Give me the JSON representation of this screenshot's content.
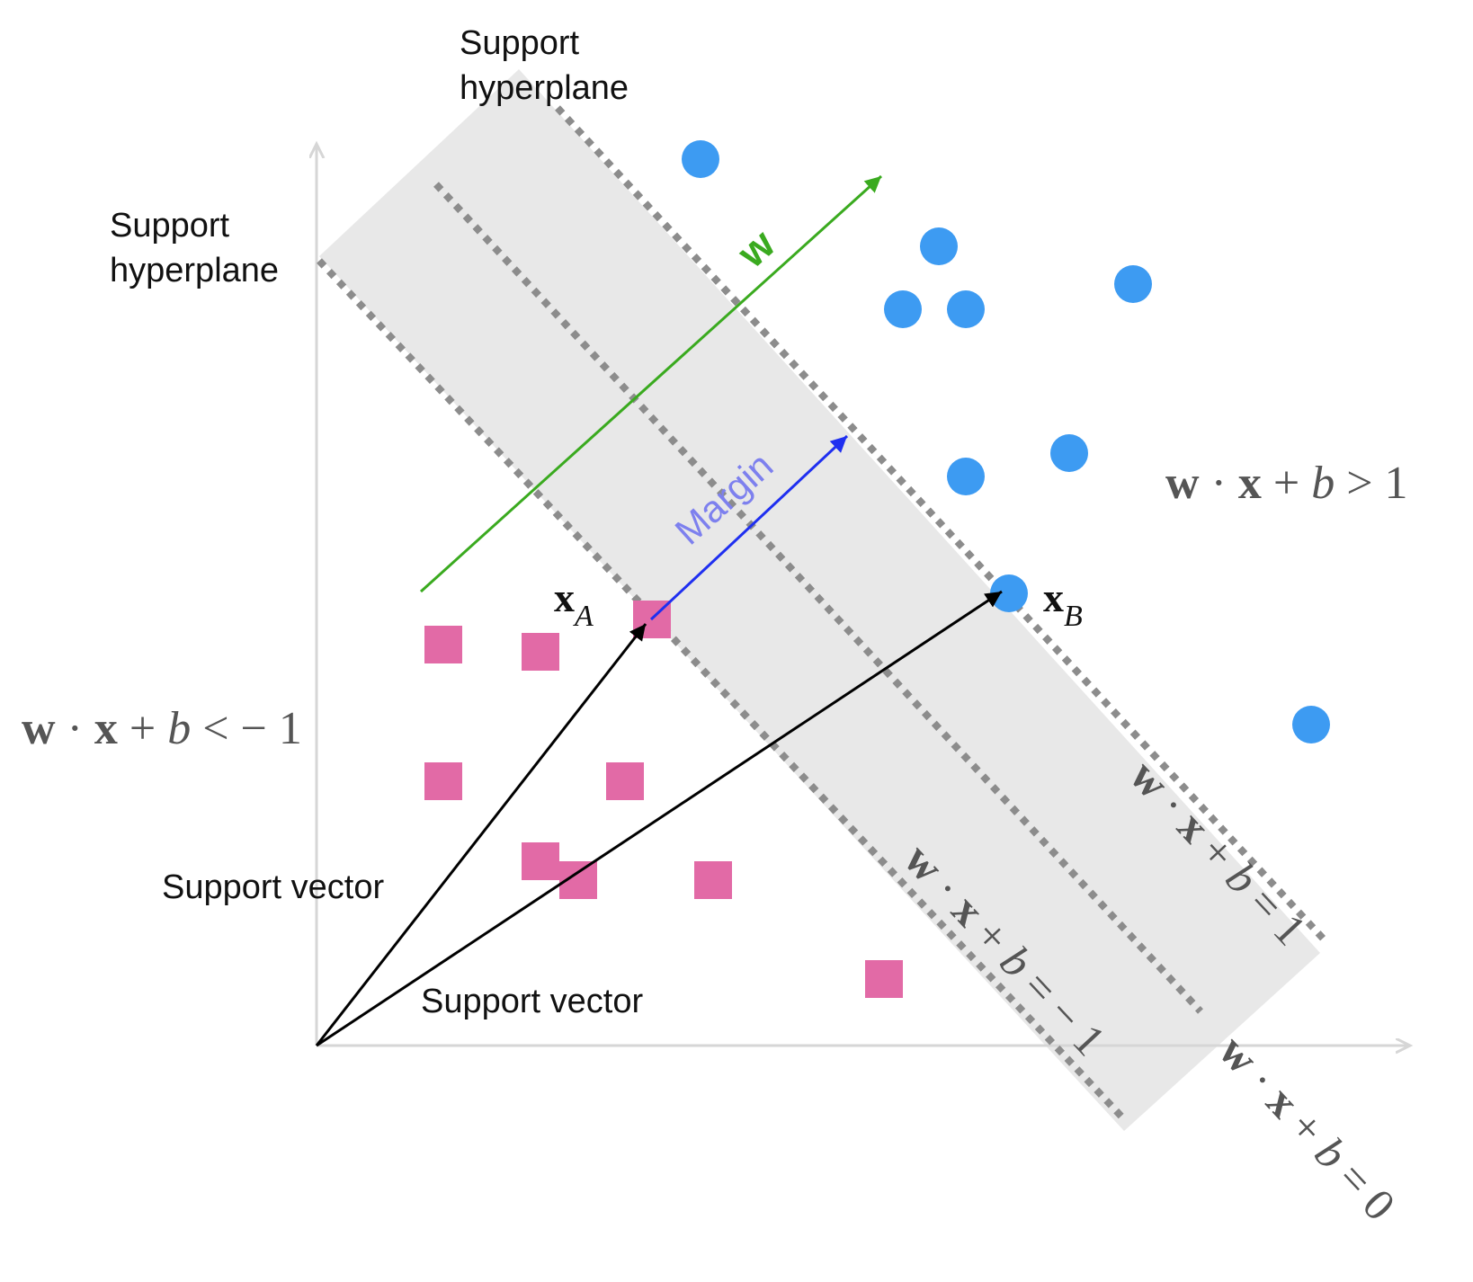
{
  "labels": {
    "support_hyperplane_top": [
      "Support",
      "hyperplane"
    ],
    "support_hyperplane_left": [
      "Support",
      "hyperplane"
    ],
    "w_vector": "w",
    "margin": "Margin",
    "support_vector_a": "Support vector",
    "support_vector_b": "Support vector"
  },
  "equations": {
    "positive_region": {
      "w": "w",
      "dot": "·",
      "x": "x",
      "plus": "+",
      "b": "b",
      "rel": ">",
      "rhs": "1"
    },
    "negative_region": {
      "w": "w",
      "dot": "·",
      "x": "x",
      "plus": "+",
      "b": "b",
      "rel": "<",
      "rhs": "− 1"
    },
    "hyperplane_plus_one": {
      "w": "w",
      "dot": "·",
      "x": "x",
      "plus": "+",
      "b": "b",
      "rel": "=",
      "rhs": "1"
    },
    "hyperplane_minus_one": {
      "w": "w",
      "dot": "·",
      "x": "x",
      "plus": "+",
      "b": "b",
      "rel": "=",
      "rhs": "− 1"
    },
    "hyperplane_zero": {
      "w": "w",
      "dot": "·",
      "x": "x",
      "plus": "+",
      "b": "b",
      "rel": "=",
      "rhs": "0"
    }
  },
  "points": {
    "xA": {
      "base": "x",
      "sub": "A"
    },
    "xB": {
      "base": "x",
      "sub": "B"
    }
  },
  "colors": {
    "axis": "#d6d6d6",
    "band": "#e8e8e8",
    "dash": "#8c8c8c",
    "w_arrow": "#3aaa1f",
    "margin_arrow": "#1f2ff0",
    "margin_label": "#7d80ee",
    "vector": "#000000",
    "positive_class": "#3d9bf2",
    "negative_class": "#e26aa6",
    "equation_text": "#555555",
    "label_text": "#111111"
  }
}
